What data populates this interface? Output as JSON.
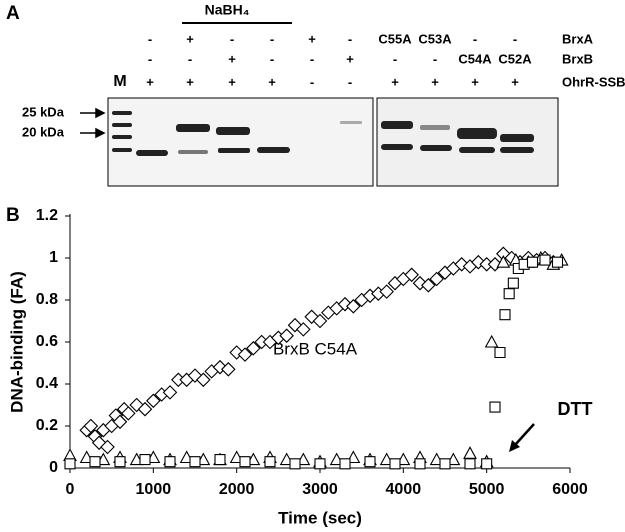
{
  "panel_a": {
    "label": "A",
    "treatment": "NaBH₄",
    "ladder": "M",
    "size_markers": [
      "25 kDa",
      "20 kDa"
    ],
    "rows": [
      {
        "name": "BrxA",
        "cells": [
          "-",
          "+",
          "-",
          "-",
          "+",
          "-",
          "C55A",
          "C53A",
          "-",
          "-"
        ]
      },
      {
        "name": "BrxB",
        "cells": [
          "-",
          "-",
          "+",
          "-",
          "-",
          "+",
          "-",
          "-",
          "C54A",
          "C52A"
        ]
      },
      {
        "name": "OhrR-SSB",
        "cells": [
          "+",
          "+",
          "+",
          "+",
          "-",
          "-",
          "+",
          "+",
          "+",
          "+"
        ]
      }
    ]
  },
  "panel_b_label": "B",
  "chart_data": {
    "type": "scatter",
    "x_label": "Time (sec)",
    "y_label": "DNA-binding (FA)",
    "annotations": [
      "BrxB C54A",
      "DTT"
    ],
    "xlim": [
      0,
      6000
    ],
    "xticks": [
      0,
      1000,
      2000,
      3000,
      4000,
      5000,
      6000
    ],
    "ylim": [
      0,
      1.2
    ],
    "yticks": [
      0,
      0.2,
      0.4,
      0.6,
      0.8,
      1,
      1.2
    ],
    "series": [
      {
        "marker": "diamond",
        "color": "#000000",
        "x": [
          200,
          250,
          300,
          350,
          400,
          450,
          500,
          550,
          600,
          650,
          700,
          800,
          900,
          1000,
          1100,
          1200,
          1300,
          1400,
          1500,
          1600,
          1700,
          1800,
          1900,
          2000,
          2100,
          2200,
          2300,
          2400,
          2500,
          2600,
          2700,
          2800,
          2900,
          3000,
          3100,
          3200,
          3300,
          3400,
          3500,
          3600,
          3700,
          3800,
          3900,
          4000,
          4100,
          4200,
          4300,
          4400,
          4500,
          4600,
          4700,
          4800,
          4900,
          5000,
          5100,
          5200,
          5300,
          5400,
          5500,
          5600,
          5700,
          5800
        ],
        "values": [
          0.18,
          0.2,
          0.15,
          0.12,
          0.18,
          0.1,
          0.2,
          0.25,
          0.22,
          0.28,
          0.26,
          0.3,
          0.28,
          0.32,
          0.35,
          0.36,
          0.42,
          0.42,
          0.44,
          0.42,
          0.46,
          0.48,
          0.47,
          0.55,
          0.54,
          0.57,
          0.6,
          0.6,
          0.62,
          0.63,
          0.68,
          0.66,
          0.72,
          0.7,
          0.74,
          0.76,
          0.78,
          0.77,
          0.8,
          0.82,
          0.83,
          0.84,
          0.88,
          0.9,
          0.92,
          0.88,
          0.87,
          0.9,
          0.93,
          0.95,
          0.97,
          0.96,
          0.98,
          0.97,
          0.97,
          1.02,
          1,
          0.98,
          1,
          0.99,
          1,
          0.98
        ]
      },
      {
        "marker": "triangle",
        "color": "#000000",
        "x": [
          0,
          200,
          400,
          600,
          800,
          1000,
          1200,
          1400,
          1600,
          1800,
          2000,
          2200,
          2400,
          2600,
          2800,
          3000,
          3200,
          3400,
          3600,
          3800,
          4000,
          4200,
          4400,
          4600,
          4800,
          5000,
          5060,
          5200,
          5350,
          5500,
          5650,
          5800,
          5900
        ],
        "values": [
          0.06,
          0.05,
          0.04,
          0.05,
          0.04,
          0.05,
          0.04,
          0.05,
          0.04,
          0.04,
          0.05,
          0.04,
          0.05,
          0.04,
          0.04,
          0.03,
          0.04,
          0.05,
          0.04,
          0.04,
          0.04,
          0.05,
          0.04,
          0.04,
          0.07,
          0.03,
          0.6,
          0.98,
          0.99,
          0.98,
          1,
          0.97,
          0.99
        ]
      },
      {
        "marker": "square",
        "color": "#000000",
        "x": [
          0,
          300,
          600,
          900,
          1200,
          1500,
          1800,
          2100,
          2400,
          2700,
          3000,
          3300,
          3600,
          3900,
          4200,
          4500,
          4800,
          5000,
          5100,
          5160,
          5220,
          5270,
          5320,
          5380,
          5450,
          5550,
          5700,
          5850
        ],
        "values": [
          0.02,
          0.03,
          0.03,
          0.04,
          0.03,
          0.03,
          0.04,
          0.03,
          0.03,
          0.02,
          0.02,
          0.02,
          0.03,
          0.02,
          0.02,
          0.02,
          0.02,
          0.02,
          0.29,
          0.55,
          0.73,
          0.83,
          0.88,
          0.95,
          0.97,
          0.98,
          0.99,
          0.98
        ]
      }
    ]
  }
}
